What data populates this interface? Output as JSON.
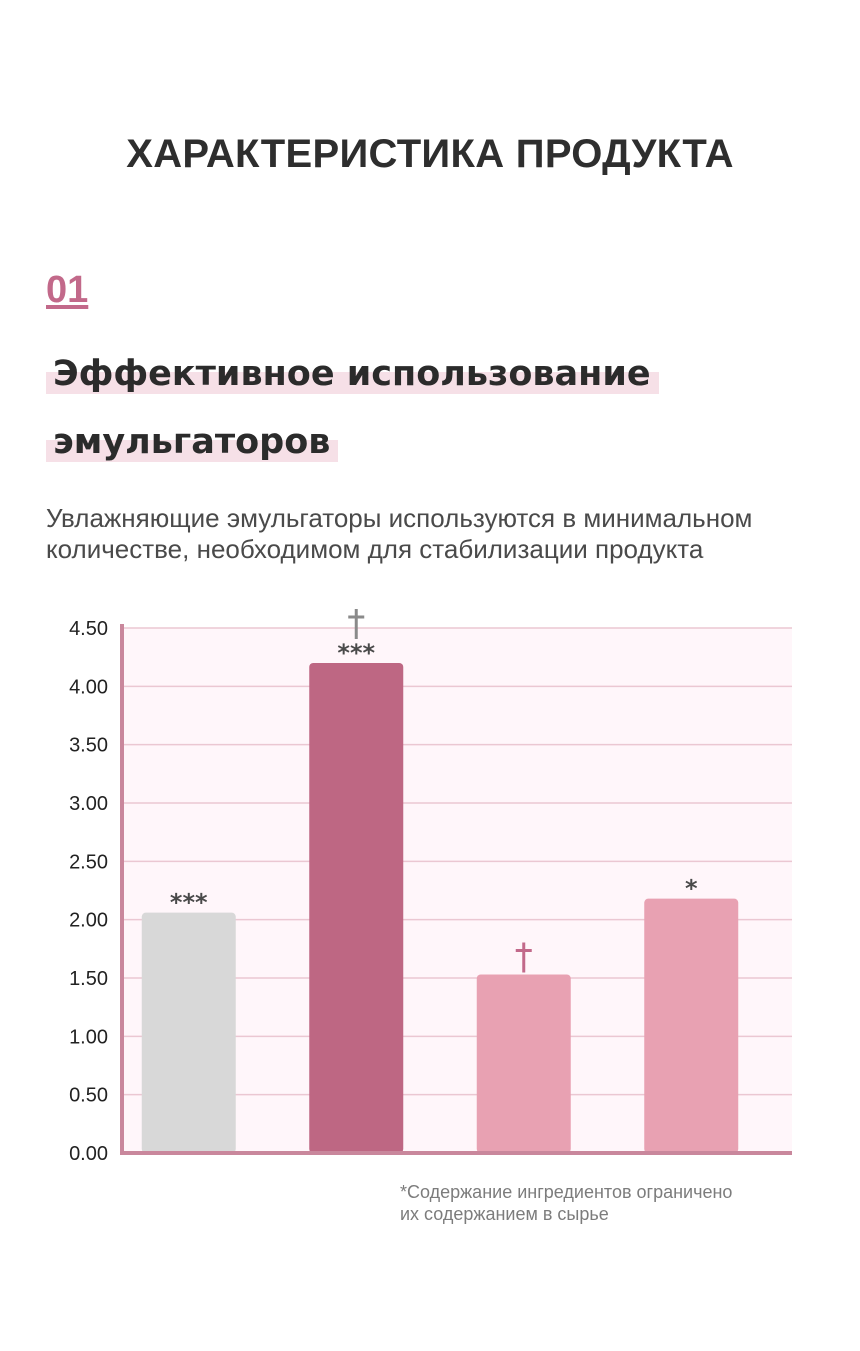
{
  "header": {
    "title": "ХАРАКТЕРИСТИКА ПРОДУКТА"
  },
  "section": {
    "number": "01",
    "headline_lines": [
      "Эффективное использование",
      "эмульгаторов"
    ],
    "description_lines": [
      "Увлажняющие эмульгаторы используются в минимальном",
      "количестве, необходимом для стабилизации продукта"
    ]
  },
  "chart_data": {
    "type": "bar",
    "title": "",
    "xlabel": "",
    "ylabel": "",
    "ylim": [
      0,
      4.5
    ],
    "yticks": [
      "0.00",
      "0.50",
      "1.00",
      "1.50",
      "2.00",
      "2.50",
      "3.00",
      "3.50",
      "4.00",
      "4.50"
    ],
    "grid": true,
    "values": [
      2.06,
      4.2,
      1.53,
      2.18
    ],
    "bar_colors": [
      "#d8d8d8",
      "#be6783",
      "#e8a1b2",
      "#e8a1b2"
    ],
    "annotations": [
      {
        "text": "***",
        "cross": false,
        "cross_color": ""
      },
      {
        "text": "***",
        "cross": true,
        "cross_color": "#8a8a8a"
      },
      {
        "text": "",
        "cross": true,
        "cross_color": "#c2698a"
      },
      {
        "text": "*",
        "cross": false,
        "cross_color": ""
      }
    ],
    "plot_background": "#fff6fa",
    "grid_color": "#ebc7d2",
    "axis_color": "#c9879c"
  },
  "footnote_lines": [
    "*Содержание ингредиентов ограничено",
    "их содержанием в сырье"
  ]
}
